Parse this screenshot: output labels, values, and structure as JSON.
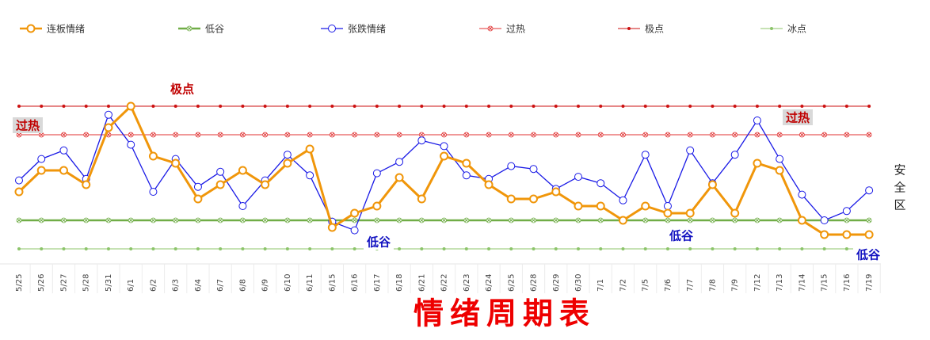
{
  "chart_data": {
    "type": "line",
    "title": "情绪周期表",
    "side_label": "安全区",
    "categories": [
      "5/25",
      "5/26",
      "5/27",
      "5/28",
      "5/31",
      "6/1",
      "6/2",
      "6/3",
      "6/4",
      "6/7",
      "6/8",
      "6/9",
      "6/10",
      "6/11",
      "6/15",
      "6/16",
      "6/17",
      "6/18",
      "6/21",
      "6/22",
      "6/23",
      "6/24",
      "6/25",
      "6/28",
      "6/29",
      "6/30",
      "7/1",
      "7/2",
      "7/5",
      "7/6",
      "7/7",
      "7/8",
      "7/9",
      "7/12",
      "7/13",
      "7/14",
      "7/15",
      "7/16",
      "7/19"
    ],
    "ylim": [
      0,
      30
    ],
    "series": [
      {
        "name": "连板情绪",
        "color": "#f0960a",
        "marker": "circle",
        "width": 3,
        "values": [
          12,
          15,
          15,
          13,
          21,
          24,
          17,
          16,
          11,
          13,
          15,
          13,
          16,
          18,
          7,
          9,
          10,
          14,
          11,
          17,
          16,
          13,
          11,
          11,
          12,
          10,
          10,
          8,
          10,
          9,
          9,
          13,
          9,
          16,
          15,
          8,
          6,
          6,
          6
        ]
      },
      {
        "name": "低谷",
        "color": "#70ad47",
        "marker": "x",
        "width": 2.5,
        "values": [
          8,
          8,
          8,
          8,
          8,
          8,
          8,
          8,
          8,
          8,
          8,
          8,
          8,
          8,
          8,
          8,
          8,
          8,
          8,
          8,
          8,
          8,
          8,
          8,
          8,
          8,
          8,
          8,
          8,
          8,
          8,
          8,
          8,
          8,
          8,
          8,
          8,
          8,
          8
        ]
      },
      {
        "name": "张跌情绪",
        "color": "#1a1ae6",
        "marker": "circle",
        "width": 1.3,
        "values": [
          13.6,
          16.6,
          17.8,
          13.8,
          22.8,
          18.6,
          12,
          16.6,
          12.7,
          14.8,
          10,
          13.6,
          17.2,
          14.3,
          7.8,
          6.6,
          14.6,
          16.2,
          19.2,
          18.4,
          14.3,
          13.8,
          15.6,
          15.2,
          12.4,
          14.1,
          13.2,
          10.8,
          17.2,
          10,
          17.8,
          13.2,
          17.2,
          22,
          16.6,
          11.6,
          8,
          9.3,
          12.2
        ]
      },
      {
        "name": "过热",
        "color": "#e03030",
        "marker": "x",
        "width": 1,
        "values": [
          20,
          20,
          20,
          20,
          20,
          20,
          20,
          20,
          20,
          20,
          20,
          20,
          20,
          20,
          20,
          20,
          20,
          20,
          20,
          20,
          20,
          20,
          20,
          20,
          20,
          20,
          20,
          20,
          20,
          20,
          20,
          20,
          20,
          20,
          20,
          20,
          20,
          20,
          20
        ]
      },
      {
        "name": "极点",
        "color": "#cc1111",
        "marker": "dot",
        "width": 1,
        "values": [
          24,
          24,
          24,
          24,
          24,
          24,
          24,
          24,
          24,
          24,
          24,
          24,
          24,
          24,
          24,
          24,
          24,
          24,
          24,
          24,
          24,
          24,
          24,
          24,
          24,
          24,
          24,
          24,
          24,
          24,
          24,
          24,
          24,
          24,
          24,
          24,
          24,
          24,
          24
        ]
      },
      {
        "name": "冰点",
        "color": "#8cc46a",
        "marker": "dot",
        "width": 1,
        "values": [
          4,
          4,
          4,
          4,
          4,
          4,
          4,
          4,
          4,
          4,
          4,
          4,
          4,
          4,
          4,
          4,
          4,
          4,
          4,
          4,
          4,
          4,
          4,
          4,
          4,
          4,
          4,
          4,
          4,
          4,
          4,
          4,
          4,
          4,
          4,
          4,
          4,
          4,
          4
        ]
      }
    ],
    "annotations": [
      {
        "text": "极点",
        "color": "#c00000",
        "style": "plain"
      },
      {
        "text": "过热",
        "color": "#c00000",
        "style": "boxed"
      },
      {
        "text": "过热",
        "color": "#c00000",
        "style": "boxed"
      },
      {
        "text": "低谷",
        "color": "#1010c0",
        "style": "plain"
      },
      {
        "text": "低谷",
        "color": "#1010c0",
        "style": "plain"
      },
      {
        "text": "低谷",
        "color": "#1010c0",
        "style": "plain"
      }
    ]
  }
}
